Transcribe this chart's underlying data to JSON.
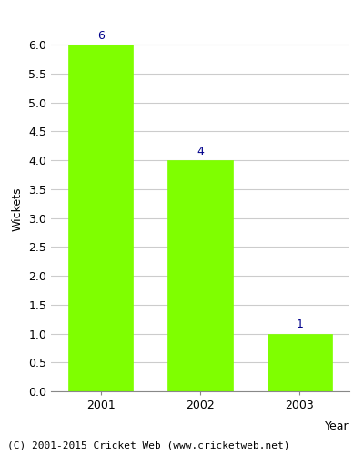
{
  "categories": [
    "2001",
    "2002",
    "2003"
  ],
  "values": [
    6,
    4,
    1
  ],
  "bar_color": "#7fff00",
  "bar_edge_color": "#7fff00",
  "xlabel": "Year",
  "ylabel": "Wickets",
  "ylim": [
    0,
    6.3
  ],
  "yticks": [
    0.0,
    0.5,
    1.0,
    1.5,
    2.0,
    2.5,
    3.0,
    3.5,
    4.0,
    4.5,
    5.0,
    5.5,
    6.0
  ],
  "annotation_color": "#00008b",
  "annotation_fontsize": 9,
  "axis_label_fontsize": 9,
  "tick_fontsize": 9,
  "footer_text": "(C) 2001-2015 Cricket Web (www.cricketweb.net)",
  "footer_fontsize": 8,
  "background_color": "#ffffff",
  "grid_color": "#cccccc",
  "bar_width": 0.65
}
